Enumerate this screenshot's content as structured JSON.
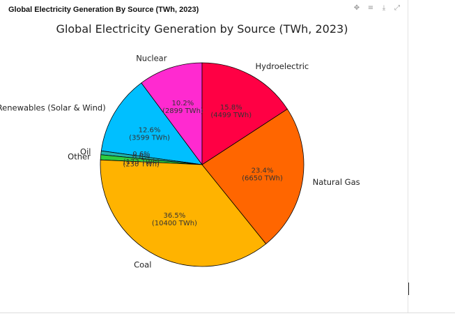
{
  "panel": {
    "title": "Global Electricity Generation By Source (TWh, 2023)",
    "toolbar": [
      "pan-icon",
      "adjust-icon",
      "download-icon",
      "collapse-icon"
    ]
  },
  "chart_data": {
    "type": "pie",
    "title": "Global Electricity Generation by Source (TWh, 2023)",
    "unit": "TWh",
    "start_angle_deg": 90,
    "direction": "counterclockwise",
    "edge_color": "#000000",
    "slices": [
      {
        "label": "Nuclear",
        "value": 2899,
        "pct_label": "10.2%",
        "value_label": "(2899 TWh)",
        "color": "#ff2ad0"
      },
      {
        "label": "Renewables (Solar & Wind)",
        "value": 3599,
        "pct_label": "12.6%",
        "value_label": "(3599 TWh)",
        "color": "#00bfff"
      },
      {
        "label": "Oil",
        "value": 173,
        "pct_label": "0.6%",
        "value_label": "(173 TWh)",
        "color": "#20b2aa"
      },
      {
        "label": "Other",
        "value": 230,
        "pct_label": "0.8%",
        "value_label": "(230 TWh)",
        "color": "#2ecc40"
      },
      {
        "label": "Coal",
        "value": 10400,
        "pct_label": "36.5%",
        "value_label": "(10400 TWh)",
        "color": "#ffb300"
      },
      {
        "label": "Natural Gas",
        "value": 6650,
        "pct_label": "23.4%",
        "value_label": "(6650 TWh)",
        "color": "#ff6600"
      },
      {
        "label": "Hydroelectric",
        "value": 4499,
        "pct_label": "15.8%",
        "value_label": "(4499 TWh)",
        "color": "#ff0044"
      }
    ]
  }
}
